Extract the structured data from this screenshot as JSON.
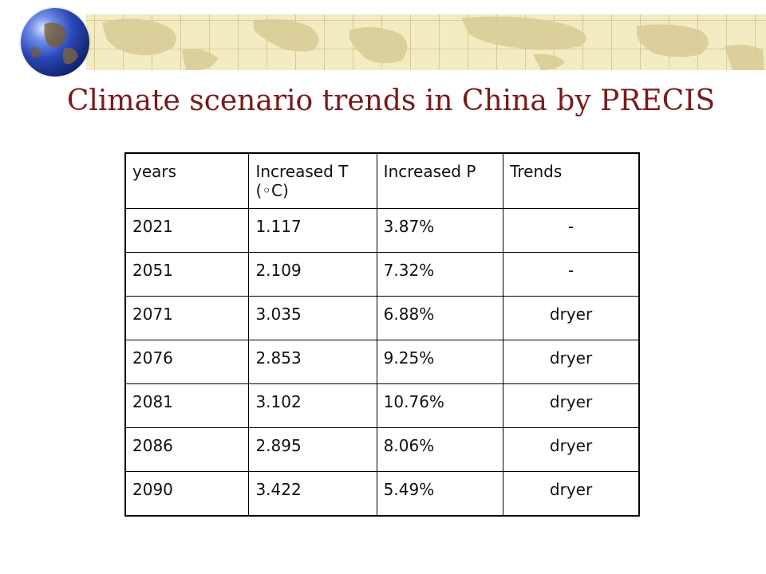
{
  "title": "Climate scenario trends in China by PRECIS",
  "table": {
    "headers": {
      "years": "years",
      "increased_t_line1": "Increased T",
      "increased_t_line2": "(◦C)",
      "increased_p": "Increased P",
      "trends": "Trends"
    },
    "rows": [
      {
        "year": "2021",
        "t": "1.117",
        "p": "3.87%",
        "trend": "-"
      },
      {
        "year": "2051",
        "t": "2.109",
        "p": "7.32%",
        "trend": "-"
      },
      {
        "year": "2071",
        "t": "3.035",
        "p": "6.88%",
        "trend": "dryer"
      },
      {
        "year": "2076",
        "t": "2.853",
        "p": "9.25%",
        "trend": "dryer"
      },
      {
        "year": "2081",
        "t": "3.102",
        "p": "10.76%",
        "trend": "dryer"
      },
      {
        "year": "2086",
        "t": "2.895",
        "p": "8.06%",
        "trend": "dryer"
      },
      {
        "year": "2090",
        "t": "3.422",
        "p": "5.49%",
        "trend": "dryer"
      }
    ]
  },
  "colors": {
    "title": "#7a1a1a",
    "banner": "#f3ebc2",
    "globe": "#2a47b8"
  }
}
